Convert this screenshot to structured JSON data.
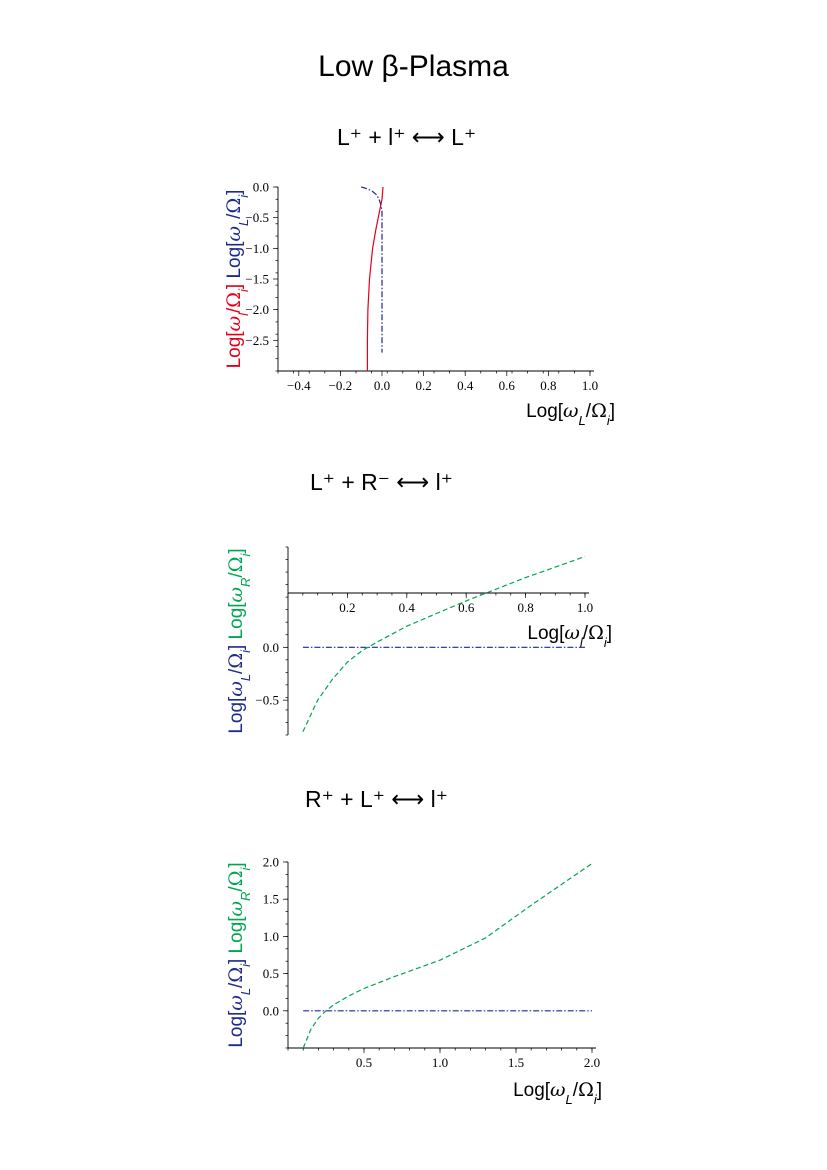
{
  "page": {
    "title": "Low β-Plasma"
  },
  "colors": {
    "red": "#e2001a",
    "blue": "#1f2a8c",
    "green": "#00a651",
    "black": "#000000"
  },
  "chart_data": [
    {
      "type": "line",
      "title": "L⁺ + l⁺ ⟷ L⁺",
      "xlabel": "Log[ωL/Ωi]",
      "ylabel_parts": [
        "Log[ωl/Ωi]",
        "Log[ωL/Ωi]"
      ],
      "xlim": [
        -0.5,
        1.0
      ],
      "ylim": [
        -3.0,
        0.0
      ],
      "xticks": [
        "-0.4",
        "-0.2",
        "0.0",
        "0.2",
        "0.4",
        "0.6",
        "0.8",
        "1.0"
      ],
      "yticks": [
        "0.0",
        "-0.5",
        "-1.0",
        "-1.5",
        "-2.0",
        "-2.5"
      ],
      "series": [
        {
          "style": "solid",
          "color": "red",
          "x": [
            -0.07,
            -0.07,
            -0.068,
            -0.06,
            -0.045,
            -0.03,
            -0.012,
            0.0,
            0.005
          ],
          "y": [
            -3.0,
            -2.5,
            -2.0,
            -1.5,
            -1.0,
            -0.7,
            -0.4,
            -0.2,
            0.0
          ]
        },
        {
          "style": "dashdot",
          "color": "blue",
          "x": [
            -0.1,
            -0.08,
            -0.05,
            -0.025,
            -0.012,
            -0.005,
            0.0,
            0.0
          ],
          "y": [
            0.0,
            -0.02,
            -0.06,
            -0.13,
            -0.22,
            -0.3,
            -0.4,
            -2.7
          ]
        }
      ]
    },
    {
      "type": "line",
      "title": "L⁺ + R⁻ ⟷ l⁺",
      "xlabel": "Log[ωl/Ωi]",
      "ylabel_parts": [
        "Log[ωL/Ωi]",
        "Log[ωR/Ωi]"
      ],
      "xlim": [
        0.0,
        1.0
      ],
      "ylim": [
        -0.83,
        0.95
      ],
      "xticks": [
        "0.2",
        "0.4",
        "0.6",
        "0.8",
        "1.0"
      ],
      "yticks": [
        "0.0",
        "-0.5"
      ],
      "series": [
        {
          "style": "dashed",
          "color": "green",
          "x": [
            0.05,
            0.1,
            0.15,
            0.2,
            0.25,
            0.3,
            0.4,
            0.5,
            0.6,
            0.7,
            0.8,
            0.9,
            1.0
          ],
          "y": [
            -0.8,
            -0.5,
            -0.3,
            -0.14,
            -0.03,
            0.05,
            0.2,
            0.32,
            0.44,
            0.55,
            0.66,
            0.76,
            0.86
          ]
        },
        {
          "style": "dashdot",
          "color": "blue",
          "x": [
            0.05,
            1.0
          ],
          "y": [
            0.0,
            0.0
          ]
        }
      ]
    },
    {
      "type": "line",
      "title": "R⁺ + L⁺ ⟷ l⁺",
      "xlabel": "Log[ωL/Ωi]",
      "ylabel_parts": [
        "Log[ωL/Ωi]",
        "Log[ωR/Ωi]"
      ],
      "xlim": [
        0.0,
        2.0
      ],
      "ylim": [
        -0.5,
        2.0
      ],
      "xticks": [
        "0.5",
        "1.0",
        "1.5",
        "2.0"
      ],
      "yticks": [
        "2.0",
        "1.5",
        "1.0",
        "0.5",
        "0.0"
      ],
      "series": [
        {
          "style": "dashed",
          "color": "green",
          "x": [
            0.1,
            0.15,
            0.2,
            0.25,
            0.3,
            0.4,
            0.5,
            0.7,
            1.0,
            1.3,
            1.6,
            2.0
          ],
          "y": [
            -0.5,
            -0.25,
            -0.1,
            0.0,
            0.08,
            0.2,
            0.3,
            0.46,
            0.68,
            0.98,
            1.42,
            1.98
          ]
        },
        {
          "style": "dashdot",
          "color": "blue",
          "x": [
            0.1,
            2.0
          ],
          "y": [
            0.0,
            0.0
          ]
        }
      ]
    }
  ]
}
